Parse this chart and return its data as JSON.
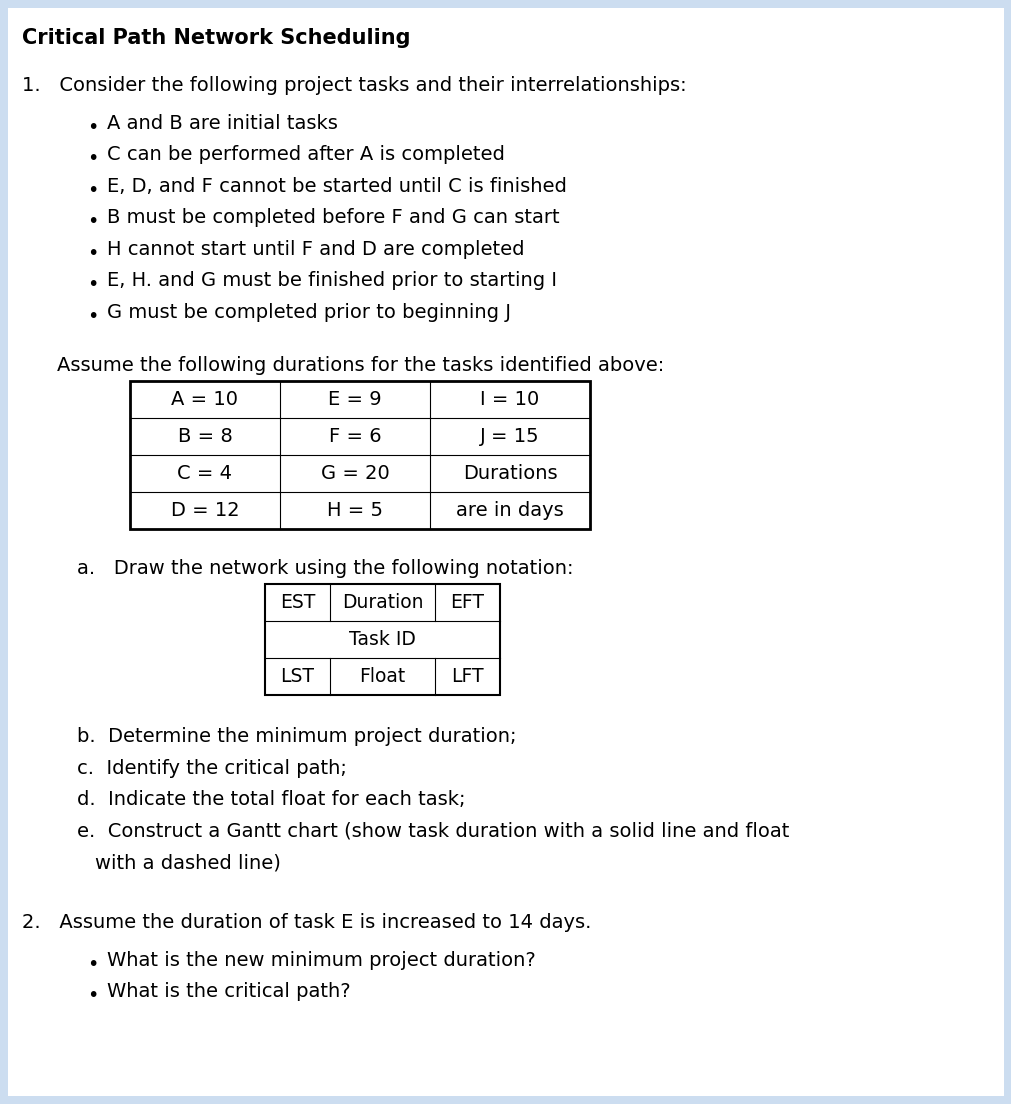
{
  "title": "Critical Path Network Scheduling",
  "background_color": "#ccddf0",
  "content_background": "#ffffff",
  "question1_header": "1.   Consider the following project tasks and their interrelationships:",
  "bullets_q1": [
    "A and B are initial tasks",
    "C can be performed after A is completed",
    "E, D, and F cannot be started until C is finished",
    "B must be completed before F and G can start",
    "H cannot start until F and D are completed",
    "E, H. and G must be finished prior to starting I",
    "G must be completed prior to beginning J"
  ],
  "duration_intro": "Assume the following durations for the tasks identified above:",
  "duration_table": [
    [
      "A = 10",
      "E = 9",
      "I = 10"
    ],
    [
      "B = 8",
      "F = 6",
      "J = 15"
    ],
    [
      "C = 4",
      "G = 20",
      "Durations"
    ],
    [
      "D = 12",
      "H = 5",
      "are in days"
    ]
  ],
  "part_a_header": "a.   Draw the network using the following notation:",
  "notation_table": [
    [
      "EST",
      "Duration",
      "EFT"
    ],
    [
      "",
      "Task ID",
      ""
    ],
    [
      "LST",
      "Float",
      "LFT"
    ]
  ],
  "parts_bcde": [
    "b.  Determine the minimum project duration;",
    "c.  Identify the critical path;",
    "d.  Indicate the total float for each task;",
    "e.  Construct a Gantt chart (show task duration with a solid line and float\n      with a dashed line)"
  ],
  "question2_header": "2.   Assume the duration of task E is increased to 14 days.",
  "bullets_q2": [
    "What is the new minimum project duration?",
    "What is the critical path?"
  ],
  "title_fontsize": 15,
  "body_fontsize": 14,
  "fig_width": 10.12,
  "fig_height": 11.04,
  "dpi": 100
}
